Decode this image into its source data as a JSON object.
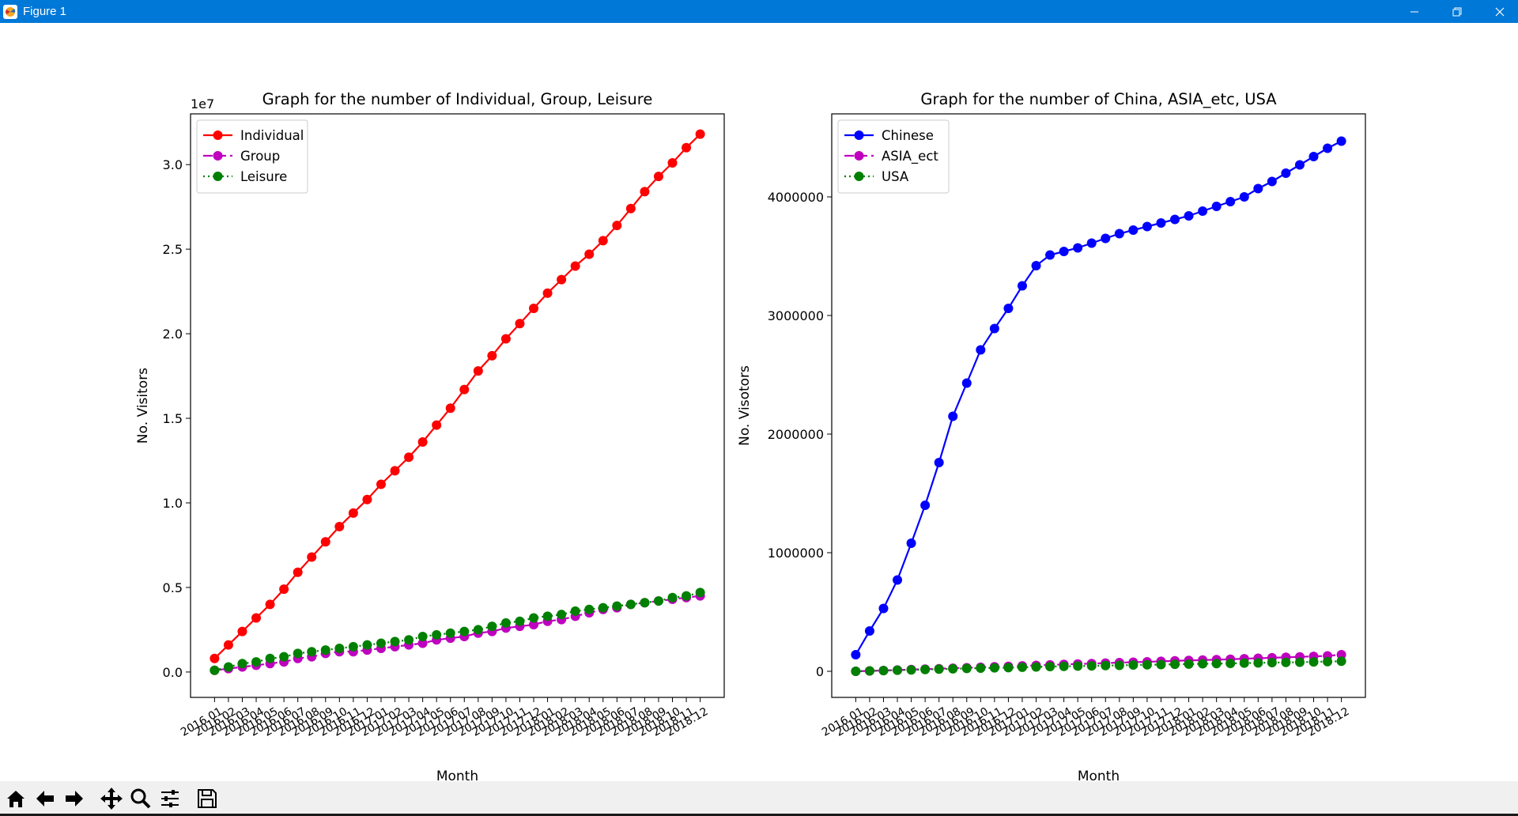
{
  "window": {
    "title": "Figure 1",
    "icon": "matplotlib-icon",
    "controls": [
      "minimize-icon",
      "restore-icon",
      "close-icon"
    ]
  },
  "toolbar": {
    "buttons": [
      "home-icon",
      "back-arrow-icon",
      "forward-arrow-icon",
      "pan-icon",
      "zoom-icon",
      "configure-subplots-icon",
      "save-icon"
    ]
  },
  "chart_data": [
    {
      "type": "line",
      "title": "Graph for the number of Individual, Group, Leisure",
      "xlabel": "Month",
      "ylabel": "No. Visitors",
      "offset_text": "1e7",
      "ylim": [
        -0.15,
        3.3
      ],
      "yticks": [
        0.0,
        0.5,
        1.0,
        1.5,
        2.0,
        2.5,
        3.0
      ],
      "ytick_labels": [
        "0.0",
        "0.5",
        "1.0",
        "1.5",
        "2.0",
        "2.5",
        "3.0"
      ],
      "y_unit_multiplier": 10000000,
      "legend_position": "upper-left",
      "categories": [
        "2016.01",
        "2016.02",
        "2016.03",
        "2016.04",
        "2016.05",
        "2016.06",
        "2016.07",
        "2016.08",
        "2016.09",
        "2016.10",
        "2016.11",
        "2016.12",
        "2017.01",
        "2017.02",
        "2017.03",
        "2017.04",
        "2017.05",
        "2017.06",
        "2017.07",
        "2017.08",
        "2017.09",
        "2017.10",
        "2017.11",
        "2017.12",
        "2018.01",
        "2018.02",
        "2018.03",
        "2018.04",
        "2018.05",
        "2018.06",
        "2018.07",
        "2018.08",
        "2018.09",
        "2018.10",
        "2018.11",
        "2018.12"
      ],
      "series": [
        {
          "name": "Individual",
          "color": "#ff0000",
          "dash": "solid",
          "values": [
            0.08,
            0.16,
            0.24,
            0.32,
            0.4,
            0.49,
            0.59,
            0.68,
            0.77,
            0.86,
            0.94,
            1.02,
            1.11,
            1.19,
            1.27,
            1.36,
            1.46,
            1.56,
            1.67,
            1.78,
            1.87,
            1.97,
            2.06,
            2.15,
            2.24,
            2.32,
            2.4,
            2.47,
            2.55,
            2.64,
            2.74,
            2.84,
            2.93,
            3.01,
            3.1,
            3.18
          ]
        },
        {
          "name": "Group",
          "color": "#bf00bf",
          "dash": "dashed",
          "values": [
            0.01,
            0.02,
            0.03,
            0.04,
            0.05,
            0.06,
            0.08,
            0.09,
            0.11,
            0.12,
            0.12,
            0.13,
            0.14,
            0.15,
            0.16,
            0.17,
            0.19,
            0.2,
            0.21,
            0.23,
            0.24,
            0.26,
            0.27,
            0.28,
            0.3,
            0.31,
            0.33,
            0.35,
            0.37,
            0.38,
            0.4,
            0.41,
            0.42,
            0.43,
            0.44,
            0.45
          ]
        },
        {
          "name": "Leisure",
          "color": "#008000",
          "dash": "dotted",
          "values": [
            0.01,
            0.03,
            0.05,
            0.06,
            0.08,
            0.09,
            0.11,
            0.12,
            0.13,
            0.14,
            0.15,
            0.16,
            0.17,
            0.18,
            0.19,
            0.21,
            0.22,
            0.23,
            0.24,
            0.25,
            0.27,
            0.29,
            0.3,
            0.32,
            0.33,
            0.34,
            0.36,
            0.37,
            0.38,
            0.39,
            0.4,
            0.41,
            0.42,
            0.44,
            0.45,
            0.47
          ]
        }
      ]
    },
    {
      "type": "line",
      "title": "Graph for the number of China, ASIA_etc, USA",
      "xlabel": "Month",
      "ylabel": "No. Visotors",
      "ylim": [
        -220000,
        4700000
      ],
      "yticks": [
        0,
        1000000,
        2000000,
        3000000,
        4000000
      ],
      "ytick_labels": [
        "0",
        "1000000",
        "2000000",
        "3000000",
        "4000000"
      ],
      "legend_position": "upper-left",
      "categories": [
        "2016.01",
        "2016.02",
        "2016.03",
        "2016.04",
        "2016.05",
        "2016.06",
        "2016.07",
        "2016.08",
        "2016.09",
        "2016.10",
        "2016.11",
        "2016.12",
        "2017.01",
        "2017.02",
        "2017.03",
        "2017.04",
        "2017.05",
        "2017.06",
        "2017.07",
        "2017.08",
        "2017.09",
        "2017.10",
        "2017.11",
        "2017.12",
        "2018.01",
        "2018.02",
        "2018.03",
        "2018.04",
        "2018.05",
        "2018.06",
        "2018.07",
        "2018.08",
        "2018.09",
        "2018.10",
        "2018.11",
        "2018.12"
      ],
      "series": [
        {
          "name": "Chinese",
          "color": "#0000ff",
          "dash": "solid",
          "values": [
            140000,
            340000,
            530000,
            770000,
            1080000,
            1400000,
            1760000,
            2150000,
            2430000,
            2710000,
            2890000,
            3060000,
            3250000,
            3420000,
            3510000,
            3540000,
            3570000,
            3610000,
            3650000,
            3690000,
            3720000,
            3750000,
            3780000,
            3810000,
            3840000,
            3880000,
            3920000,
            3960000,
            4000000,
            4070000,
            4130000,
            4200000,
            4270000,
            4340000,
            4410000,
            4470000
          ]
        },
        {
          "name": "ASIA_ect",
          "color": "#bf00bf",
          "dash": "dashed",
          "values": [
            0,
            3000,
            7000,
            11000,
            15000,
            18000,
            22000,
            26000,
            30000,
            34000,
            38000,
            42000,
            46000,
            50000,
            54000,
            58000,
            62000,
            65000,
            69000,
            73000,
            77000,
            80000,
            84000,
            88000,
            92000,
            95000,
            98000,
            102000,
            106000,
            110000,
            114000,
            118000,
            122000,
            126000,
            130000,
            140000
          ]
        },
        {
          "name": "USA",
          "color": "#008000",
          "dash": "dotted",
          "values": [
            0,
            3000,
            6000,
            9000,
            12000,
            15000,
            18000,
            21000,
            24000,
            27000,
            29000,
            31000,
            34000,
            37000,
            40000,
            42000,
            44000,
            46000,
            48000,
            50000,
            53000,
            55000,
            57000,
            59000,
            61000,
            63000,
            65000,
            67000,
            69000,
            71000,
            73000,
            75000,
            77000,
            79000,
            82000,
            85000
          ]
        }
      ]
    }
  ]
}
